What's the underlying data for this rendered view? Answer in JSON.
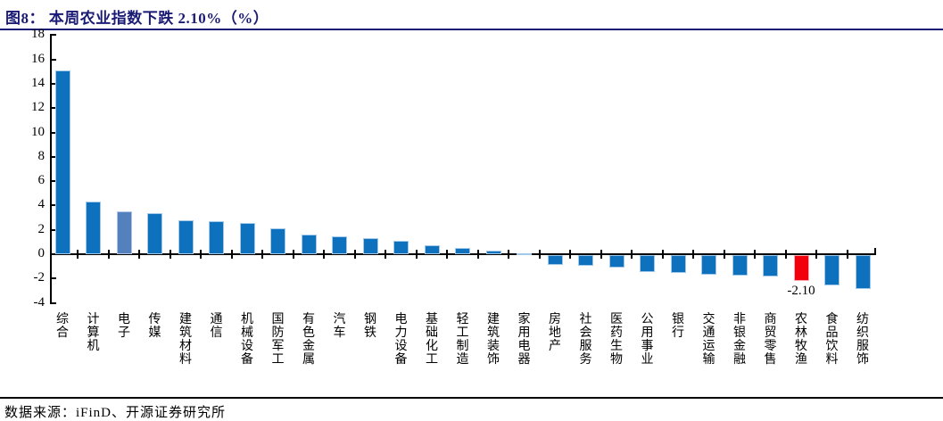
{
  "title": "图8： 本周农业指数下跌 2.10%（%）",
  "source": "数据来源：iFinD、开源证券研究所",
  "chart_data": {
    "type": "bar",
    "title": "本周农业指数下跌 2.10%（%）",
    "xlabel": "",
    "ylabel": "",
    "categories": [
      "综合",
      "计算机",
      "电子",
      "传媒",
      "建筑材料",
      "通信",
      "机械设备",
      "国防军工",
      "有色金属",
      "汽车",
      "钢铁",
      "电力设备",
      "基础化工",
      "轻工制造",
      "建筑装饰",
      "家用电器",
      "房地产",
      "社会服务",
      "医药生物",
      "公用事业",
      "银行",
      "交通运输",
      "非银金融",
      "商贸零售",
      "农林牧渔",
      "食品饮料",
      "纺织服饰"
    ],
    "values": [
      15.1,
      4.3,
      3.5,
      3.4,
      2.8,
      2.7,
      2.6,
      2.1,
      1.6,
      1.5,
      1.3,
      1.1,
      0.7,
      0.5,
      0.3,
      0.1,
      -0.8,
      -0.9,
      -1.0,
      -1.4,
      -1.5,
      -1.6,
      -1.7,
      -1.75,
      -2.1,
      -2.5,
      -2.8
    ],
    "ylim": [
      -4,
      18
    ],
    "ytick_interval": 2,
    "yticks": [
      18,
      16,
      14,
      12,
      10,
      8,
      6,
      4,
      2,
      0,
      -2,
      -4
    ],
    "grid": false,
    "legend": false,
    "annotation": {
      "text": "-2.10",
      "category": "农林牧渔"
    },
    "colors": {
      "bar": "#0E71BE",
      "bar_edge": "#A2C8EA",
      "axis": "#000000",
      "title_text": "#1b1b75"
    },
    "special_bars": [
      {
        "category": "电子",
        "color": "#5480BD",
        "edge": "#ADC4E4"
      },
      {
        "category": "农林牧渔",
        "color": "#F2000C",
        "edge": "#FBAEB7"
      }
    ]
  }
}
